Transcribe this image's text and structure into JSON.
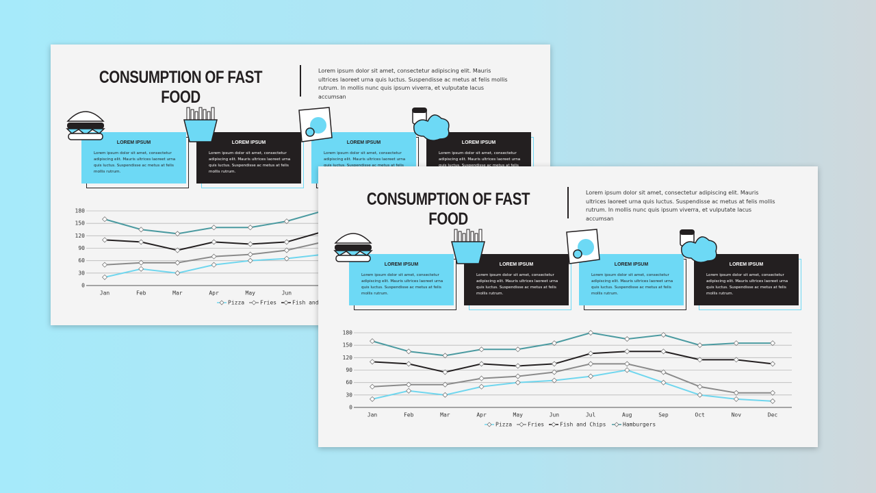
{
  "title": "CONSUMPTION OF FAST FOOD",
  "description": "Lorem ipsum dolor sit amet, consectetur adipiscing elit. Mauris ultrices laoreet urna quis luctus. Suspendisse ac metus at felis mollis rutrum. In mollis nunc quis ipsum viverra, et vulputate lacus accumsan",
  "cards": [
    {
      "heading": "LOREM IPSUM",
      "text": "Lorem ipsum dolor sit amet, consectetur adipiscing elit. Mauris ultrices laoreet urna quis luctus. Suspendisse ac metus at felis mollis rutrum."
    },
    {
      "heading": "LOREM IPSUM",
      "text": "Lorem ipsum dolor sit amet, consectetur adipiscing elit. Mauris ultrices laoreet urna quis luctus. Suspendisse ac metus at felis mollis rutrum."
    },
    {
      "heading": "LOREM IPSUM",
      "text": "Lorem ipsum dolor sit amet, consectetur adipiscing elit. Mauris ultrices laoreet urna quis luctus. Suspendisse ac metus at felis mollis rutrum."
    },
    {
      "heading": "LOREM IPSUM",
      "text": "Lorem ipsum dolor sit amet, consectetur adipiscing elit. Mauris ultrices laoreet urna quis luctus. Suspendisse ac metus at felis mollis rutrum."
    }
  ],
  "chart_data": {
    "type": "line",
    "categories": [
      "Jan",
      "Feb",
      "Mar",
      "Apr",
      "May",
      "Jun",
      "Jul",
      "Aug",
      "Sep",
      "Oct",
      "Nov",
      "Dec"
    ],
    "series": [
      {
        "name": "Pizza",
        "color": "#6fd6ee",
        "values": [
          20,
          40,
          30,
          50,
          60,
          65,
          75,
          90,
          60,
          30,
          20,
          15
        ]
      },
      {
        "name": "Fries",
        "color": "#8a8a8a",
        "values": [
          50,
          55,
          55,
          70,
          75,
          85,
          105,
          105,
          85,
          50,
          35,
          35
        ]
      },
      {
        "name": "Fish and Chips",
        "color": "#231f20",
        "values": [
          110,
          105,
          85,
          105,
          100,
          105,
          130,
          135,
          135,
          115,
          115,
          105
        ]
      },
      {
        "name": "Hamburgers",
        "color": "#4a9aa0",
        "values": [
          160,
          135,
          125,
          140,
          140,
          155,
          180,
          165,
          175,
          150,
          155,
          155
        ]
      }
    ],
    "ylim": [
      0,
      180
    ],
    "yticks": [
      0,
      30,
      60,
      90,
      120,
      150,
      180
    ],
    "grid": true,
    "legend": "bottom"
  }
}
